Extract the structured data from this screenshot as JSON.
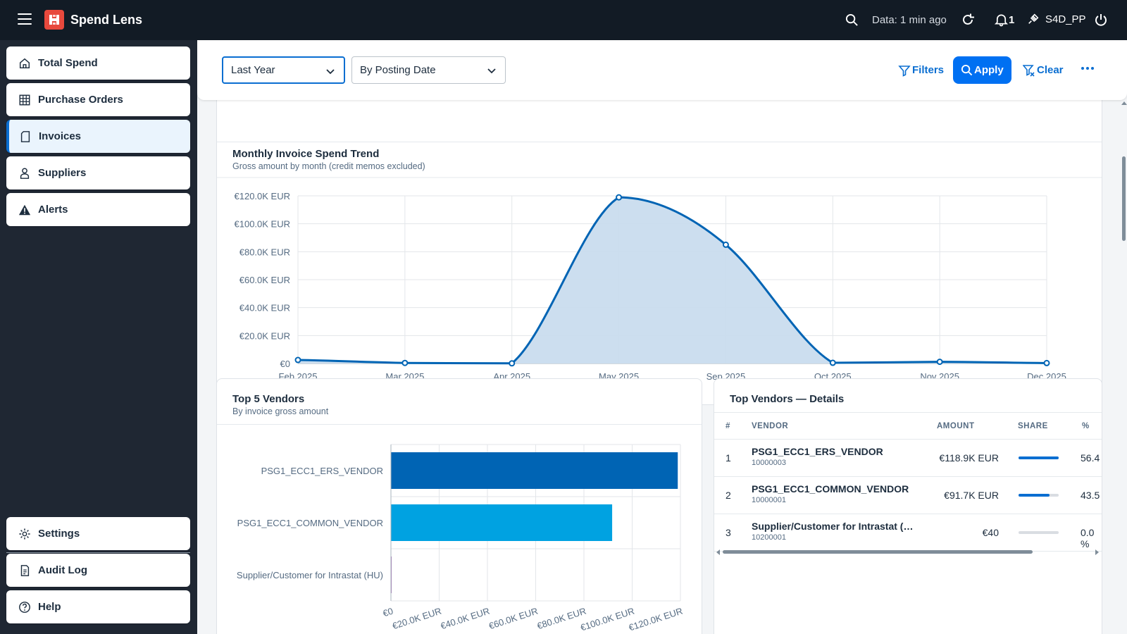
{
  "shell": {
    "app_title": "Spend Lens",
    "data_age": "Data: 1 min ago",
    "notification_count": "1",
    "system": "S4D_PP"
  },
  "sidebar": {
    "items": [
      {
        "label": "Total Spend",
        "icon": "home-icon"
      },
      {
        "label": "Purchase Orders",
        "icon": "table-icon"
      },
      {
        "label": "Invoices",
        "icon": "document-icon"
      },
      {
        "label": "Suppliers",
        "icon": "person-icon"
      },
      {
        "label": "Alerts",
        "icon": "warning-icon"
      }
    ],
    "footer": [
      {
        "label": "Settings",
        "icon": "gear-icon"
      },
      {
        "label": "Audit Log",
        "icon": "log-icon"
      },
      {
        "label": "Help",
        "icon": "help-icon"
      }
    ],
    "active": "Invoices"
  },
  "filterbar": {
    "period": "Last Year",
    "date_basis": "By Posting Date",
    "filters_label": "Filters",
    "apply_label": "Apply",
    "clear_label": "Clear"
  },
  "colors": {
    "accent": "#0a6ed1",
    "bar_primary": "#0064b4",
    "bar_secondary": "#00a2e1",
    "area_fill": "#c9dcee",
    "shell_bg": "#121b25"
  },
  "trend_card": {
    "title": "Monthly Invoice Spend Trend",
    "subtitle": "Gross amount by month (credit memos excluded)"
  },
  "vendors_card": {
    "title": "Top 5 Vendors",
    "subtitle": "By invoice gross amount"
  },
  "details_card": {
    "title": "Top Vendors — Details",
    "columns": [
      "#",
      "VENDOR",
      "AMOUNT",
      "SHARE",
      "%"
    ],
    "rows": [
      {
        "rank": "1",
        "vendor": "PSG1_ECC1_ERS_VENDOR",
        "id": "10000003",
        "amount": "€118.9K EUR",
        "share": 0.564,
        "pct": "56.4"
      },
      {
        "rank": "2",
        "vendor": "PSG1_ECC1_COMMON_VENDOR",
        "id": "10000001",
        "amount": "€91.7K EUR",
        "share": 0.435,
        "pct": "43.5"
      },
      {
        "rank": "3",
        "vendor": "Supplier/Customer for Intrastat (…",
        "id": "10200001",
        "amount": "€40",
        "share": 0.0,
        "pct": "0.0 %"
      }
    ]
  },
  "chart_data": [
    {
      "type": "area",
      "title": "Monthly Invoice Spend Trend",
      "subtitle": "Gross amount by month (credit memos excluded)",
      "categories": [
        "Feb 2025",
        "Mar 2025",
        "Apr 2025",
        "May 2025",
        "Sep 2025",
        "Oct 2025",
        "Nov 2025",
        "Dec 2025"
      ],
      "values": [
        2500,
        400,
        100,
        118900,
        85000,
        500,
        1200,
        300
      ],
      "y_ticks": [
        "€0",
        "€20.0K EUR",
        "€40.0K EUR",
        "€60.0K EUR",
        "€80.0K EUR",
        "€100.0K EUR",
        "€120.0K EUR"
      ],
      "ylim": [
        0,
        120000
      ],
      "grid": true
    },
    {
      "type": "bar",
      "orientation": "horizontal",
      "title": "Top 5 Vendors",
      "subtitle": "By invoice gross amount",
      "categories": [
        "PSG1_ECC1_ERS_VENDOR",
        "PSG1_ECC1_COMMON_VENDOR",
        "Supplier/Customer for Intrastat (HU)"
      ],
      "values": [
        118900,
        91700,
        40
      ],
      "x_ticks": [
        "€0",
        "€20.0K EUR",
        "€40.0K EUR",
        "€60.0K EUR",
        "€80.0K EUR",
        "€100.0K EUR",
        "€120.0K EUR"
      ],
      "xlim": [
        0,
        120000
      ],
      "grid": true
    }
  ]
}
